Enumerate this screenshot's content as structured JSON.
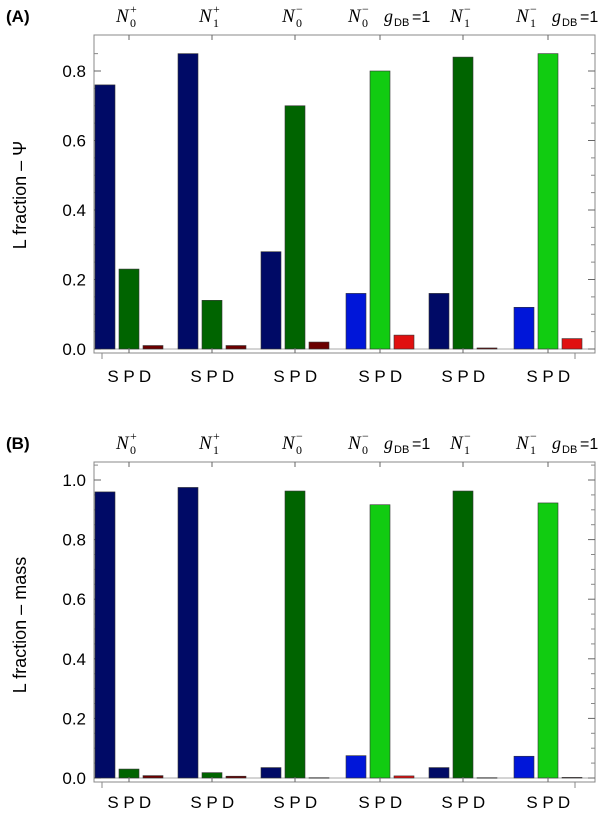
{
  "colors": {
    "S": [
      "#000a66",
      "#000a66",
      "#000a66",
      "#0016d9",
      "#000a66",
      "#0016d9"
    ],
    "P": [
      "#006400",
      "#006400",
      "#006400",
      "#11cc11",
      "#006400",
      "#11cc11"
    ],
    "D": [
      "#6b0000",
      "#6b0000",
      "#6b0000",
      "#e01010",
      "#6b0000",
      "#e01010"
    ]
  },
  "groups": [
    {
      "sym": "N",
      "sub": "0",
      "sup": "+",
      "extra": ""
    },
    {
      "sym": "N",
      "sub": "1",
      "sup": "+",
      "extra": ""
    },
    {
      "sym": "N",
      "sub": "0",
      "sup": "−",
      "extra": ""
    },
    {
      "sym": "N",
      "sub": "0",
      "sup": "−",
      "extra": "g",
      "extra_sub": "DB",
      "extra_val": "=1"
    },
    {
      "sym": "N",
      "sub": "1",
      "sup": "−",
      "extra": ""
    },
    {
      "sym": "N",
      "sub": "1",
      "sup": "−",
      "extra": "g",
      "extra_sub": "DB",
      "extra_val": "=1"
    }
  ],
  "chart_data": [
    {
      "type": "bar",
      "panel_label": "(A)",
      "ylabel": "L fraction – Ψ",
      "bar_labels": [
        "S",
        "P",
        "D"
      ],
      "ylim": [
        0,
        0.9
      ],
      "yticks": [
        "0.0",
        "0.2",
        "0.4",
        "0.6",
        "0.8"
      ],
      "ytick_values": [
        0,
        0.2,
        0.4,
        0.6,
        0.8
      ],
      "series": [
        {
          "values": [
            0.76,
            0.85,
            0.28,
            0.16,
            0.16,
            0.12
          ]
        },
        {
          "values": [
            0.23,
            0.14,
            0.7,
            0.8,
            0.84,
            0.85
          ]
        },
        {
          "values": [
            0.01,
            0.01,
            0.02,
            0.04,
            0.003,
            0.03
          ]
        }
      ]
    },
    {
      "type": "bar",
      "panel_label": "(B)",
      "ylabel": "L fraction – mass",
      "bar_labels": [
        "S",
        "P",
        "D"
      ],
      "ylim": [
        0,
        1.05
      ],
      "yticks": [
        "0.0",
        "0.2",
        "0.4",
        "0.6",
        "0.8",
        "1.0"
      ],
      "ytick_values": [
        0,
        0.2,
        0.4,
        0.6,
        0.8,
        1.0
      ],
      "series": [
        {
          "values": [
            0.96,
            0.975,
            0.035,
            0.075,
            0.035,
            0.073
          ]
        },
        {
          "values": [
            0.03,
            0.018,
            0.963,
            0.917,
            0.963,
            0.923
          ]
        },
        {
          "values": [
            0.008,
            0.006,
            0.001,
            0.007,
            0.001,
            0.002
          ]
        }
      ]
    }
  ]
}
